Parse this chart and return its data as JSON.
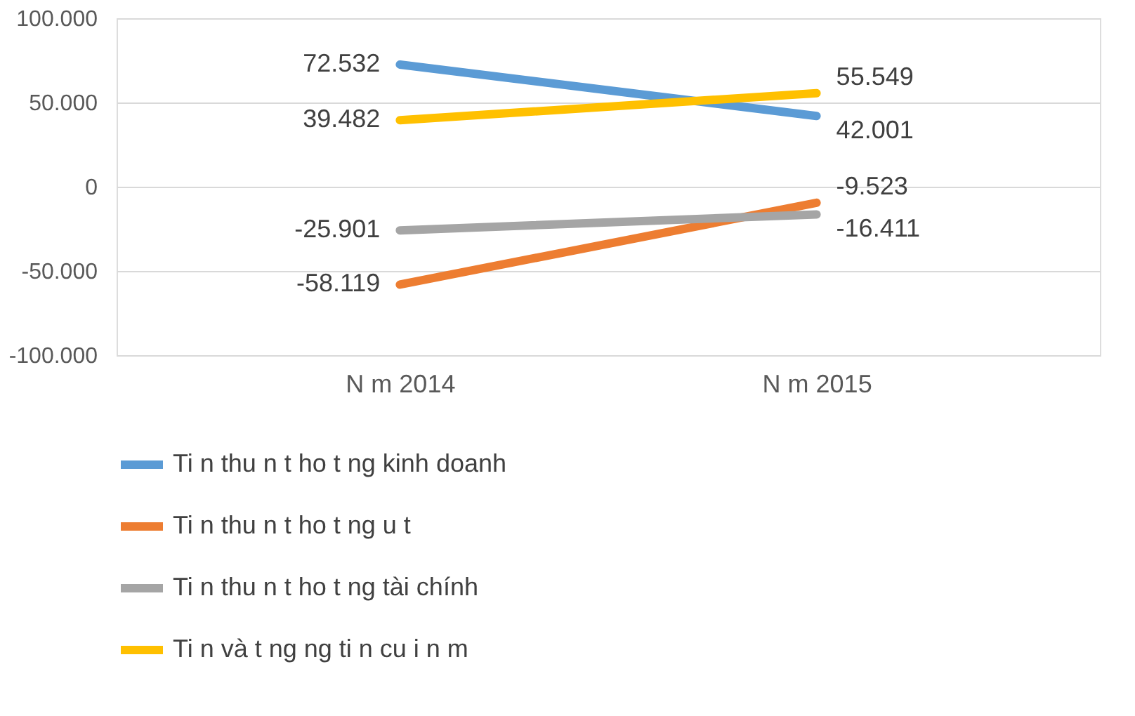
{
  "chart_data": {
    "type": "line",
    "categories": [
      "N  m 2014",
      "N  m 2015"
    ],
    "series": [
      {
        "name": "Ti  n thu  n t   ho  t    ng kinh doanh",
        "color": "#5b9bd5",
        "values": [
          72532,
          42001
        ],
        "value_labels": [
          "72.532",
          "42.001"
        ]
      },
      {
        "name": "Ti  n thu  n t   ho  t    ng     u t",
        "color": "#ed7d31",
        "values": [
          -58119,
          -9523
        ],
        "value_labels": [
          "-58.119",
          "-9.523"
        ]
      },
      {
        "name": "Ti  n thu  n t   ho  t    ng tài chính",
        "color": "#a5a5a5",
        "values": [
          -25901,
          -16411
        ],
        "value_labels": [
          "-25.901",
          "-16.411"
        ]
      },
      {
        "name": "Ti  n và t    ng      ng ti  n cu  i n  m",
        "color": "#ffc000",
        "values": [
          39482,
          55549
        ],
        "value_labels": [
          "39.482",
          "55.549"
        ]
      }
    ],
    "ylim": [
      -100000,
      100000
    ],
    "yticks": [
      {
        "value": -100000,
        "label": "-100.000"
      },
      {
        "value": -50000,
        "label": "-50.000"
      },
      0,
      {
        "value": 50000,
        "label": "50.000"
      },
      {
        "value": 100000,
        "label": "100.000"
      }
    ],
    "grid": "y",
    "legend": "bottom",
    "marker": "none",
    "line_style": "solid"
  }
}
